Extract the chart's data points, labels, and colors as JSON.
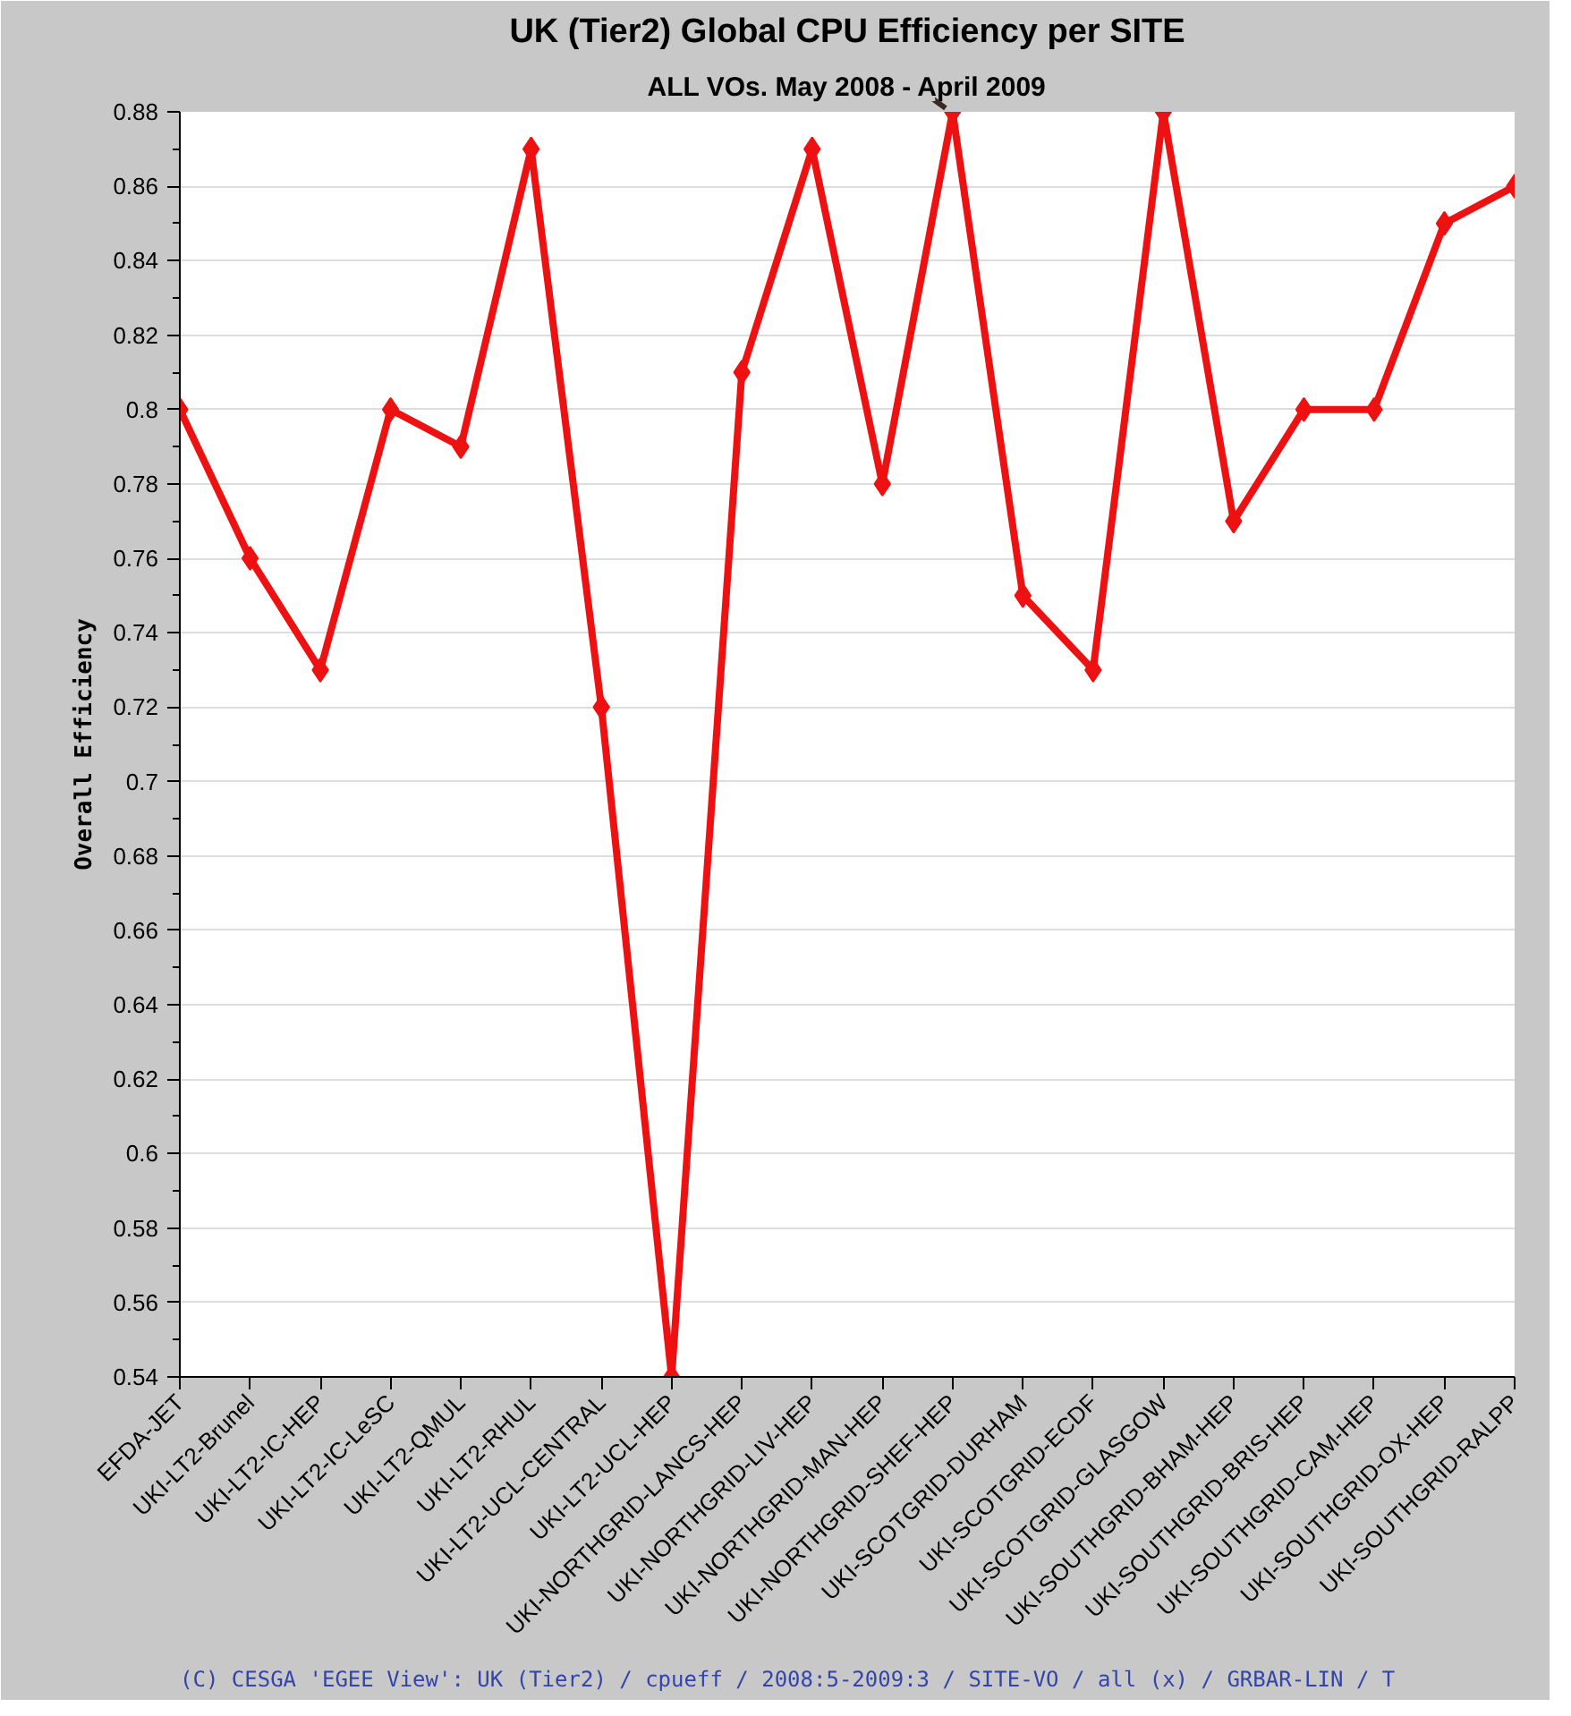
{
  "chart_data": {
    "type": "line",
    "title": "UK (Tier2) Global CPU Efficiency per SITE",
    "subtitle": "ALL VOs. May 2008 - April 2009",
    "ylabel": "Overall Efficiency",
    "categories": [
      "EFDA-JET",
      "UKI-LT2-Brunel",
      "UKI-LT2-IC-HEP",
      "UKI-LT2-IC-LeSC",
      "UKI-LT2-QMUL",
      "UKI-LT2-RHUL",
      "UKI-LT2-UCL-CENTRAL",
      "UKI-LT2-UCL-HEP",
      "UKI-NORTHGRID-LANCS-HEP",
      "UKI-NORTHGRID-LIV-HEP",
      "UKI-NORTHGRID-MAN-HEP",
      "UKI-NORTHGRID-SHEF-HEP",
      "UKI-SCOTGRID-DURHAM",
      "UKI-SCOTGRID-ECDF",
      "UKI-SCOTGRID-GLASGOW",
      "UKI-SOUTHGRID-BHAM-HEP",
      "UKI-SOUTHGRID-BRIS-HEP",
      "UKI-SOUTHGRID-CAM-HEP",
      "UKI-SOUTHGRID-OX-HEP",
      "UKI-SOUTHGRID-RALPP"
    ],
    "series": [
      {
        "color": "#ee1111",
        "values": [
          0.8,
          0.76,
          0.73,
          0.8,
          0.79,
          0.87,
          0.72,
          0.54,
          0.81,
          0.87,
          0.78,
          0.88,
          0.75,
          0.73,
          0.88,
          0.77,
          0.8,
          0.8,
          0.85,
          0.86
        ]
      }
    ],
    "ylim": [
      0.54,
      0.88
    ],
    "yticks": [
      0.54,
      0.56,
      0.58,
      0.6,
      0.62,
      0.64,
      0.66,
      0.68,
      0.7,
      0.72,
      0.74,
      0.76,
      0.78,
      0.8,
      0.82,
      0.84,
      0.86,
      0.88
    ],
    "grid": "y",
    "marker": "diamond",
    "line_style": "solid",
    "annotations": [
      "(C) CESGA 'EGEE View': UK (Tier2) / cpueff / 2008:5-2009:3 / SITE-VO / all (x) / GRBAR-LIN / T"
    ]
  }
}
